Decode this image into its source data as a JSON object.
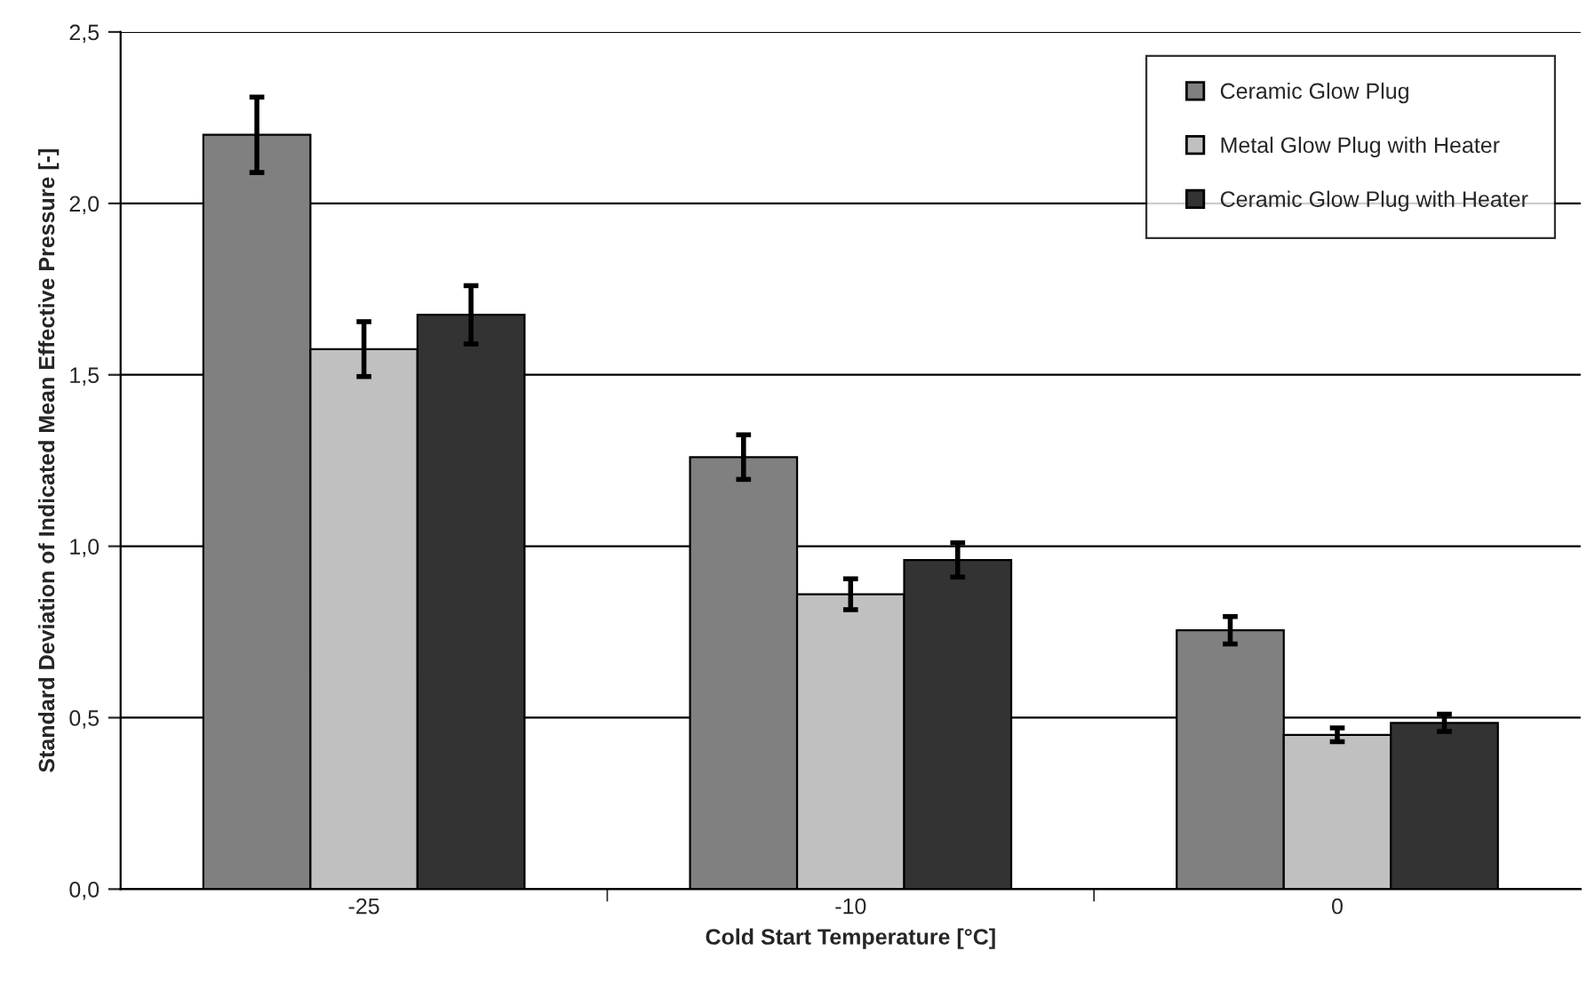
{
  "chart_data": {
    "type": "bar",
    "xlabel": "Cold Start Temperature [°C]",
    "ylabel": "Standard Deviation of Indicated Mean Effective Pressure [-]",
    "categories": [
      "-25",
      "-10",
      "0"
    ],
    "series": [
      {
        "name": "Ceramic Glow Plug",
        "color": "#808080",
        "values": [
          2.2,
          1.26,
          0.755
        ],
        "errors": [
          0.11,
          0.065,
          0.04
        ]
      },
      {
        "name": "Metal Glow Plug with Heater",
        "color": "#c0c0c0",
        "values": [
          1.575,
          0.86,
          0.45
        ],
        "errors": [
          0.08,
          0.045,
          0.02
        ]
      },
      {
        "name": "Ceramic Glow Plug with Heater",
        "color": "#333333",
        "values": [
          1.675,
          0.96,
          0.485
        ],
        "errors": [
          0.085,
          0.05,
          0.025
        ]
      }
    ],
    "ylim": [
      0,
      2.5
    ],
    "yticks": [
      {
        "value": 0,
        "label": "0,0"
      },
      {
        "value": 0.5,
        "label": "0,5"
      },
      {
        "value": 1.0,
        "label": "1,0"
      },
      {
        "value": 1.5,
        "label": "1,5"
      },
      {
        "value": 2.0,
        "label": "2,0"
      },
      {
        "value": 2.5,
        "label": "2,5"
      }
    ],
    "grid": "y",
    "legend": "top right"
  }
}
